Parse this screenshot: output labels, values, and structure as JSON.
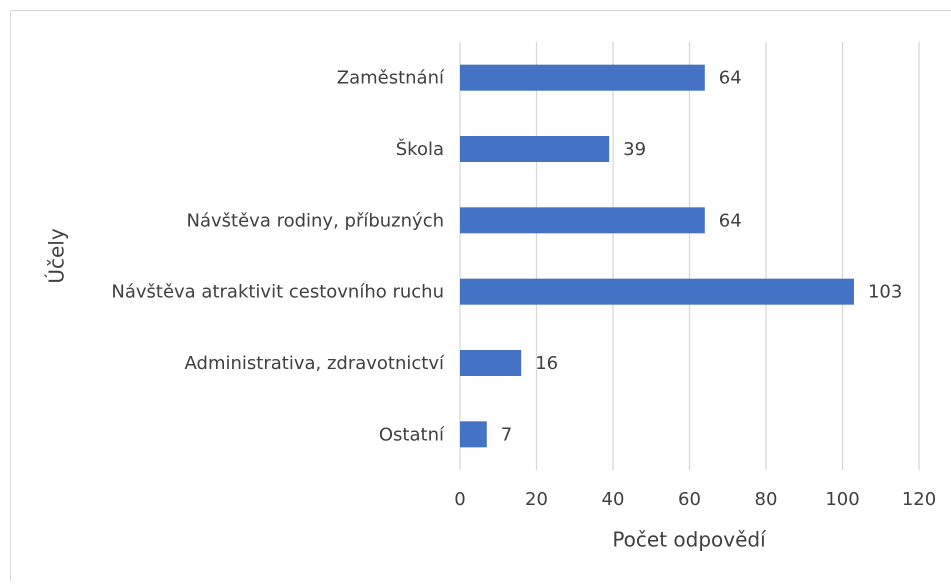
{
  "chart_data": {
    "type": "bar",
    "orientation": "horizontal",
    "categories": [
      "Zaměstnání",
      "Škola",
      "Návštěva rodiny, příbuzných",
      "Návštěva atraktivit cestovního ruchu",
      "Administrativa, zdravotnictví",
      "Ostatní"
    ],
    "values": [
      64,
      39,
      64,
      103,
      16,
      7
    ],
    "color": "#4472c4",
    "xlim": [
      0,
      120
    ],
    "xticks": [
      0,
      20,
      40,
      60,
      80,
      100,
      120
    ],
    "x_label": "Počet odpovědí",
    "y_label": "Účely",
    "grid": true
  }
}
